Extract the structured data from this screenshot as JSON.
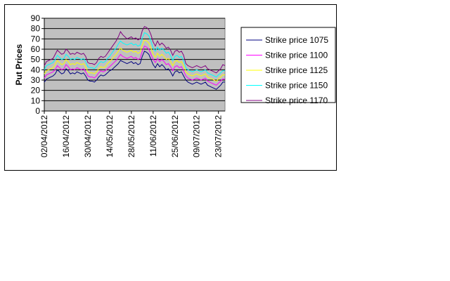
{
  "chart_data": {
    "type": "line",
    "title": "",
    "xlabel": "",
    "ylabel": "Put Prices",
    "ylim": [
      0,
      90
    ],
    "yticks": [
      0,
      10,
      20,
      30,
      40,
      50,
      60,
      70,
      80,
      90
    ],
    "x_tick_labels": [
      "02/04/2012",
      "16/04/2012",
      "30/04/2012",
      "14/05/2012",
      "28/05/2012",
      "11/06/2012",
      "25/06/2012",
      "09/07/2012",
      "23/07/2012"
    ],
    "x": [
      "02/04/2012",
      "03/04/2012",
      "04/04/2012",
      "05/04/2012",
      "06/04/2012",
      "09/04/2012",
      "10/04/2012",
      "11/04/2012",
      "12/04/2012",
      "13/04/2012",
      "16/04/2012",
      "17/04/2012",
      "18/04/2012",
      "19/04/2012",
      "20/04/2012",
      "23/04/2012",
      "24/04/2012",
      "25/04/2012",
      "26/04/2012",
      "27/04/2012",
      "30/04/2012",
      "01/05/2012",
      "02/05/2012",
      "03/05/2012",
      "04/05/2012",
      "07/05/2012",
      "08/05/2012",
      "09/05/2012",
      "10/05/2012",
      "11/05/2012",
      "14/05/2012",
      "15/05/2012",
      "16/05/2012",
      "17/05/2012",
      "18/05/2012",
      "21/05/2012",
      "22/05/2012",
      "23/05/2012",
      "24/05/2012",
      "25/05/2012",
      "28/05/2012",
      "29/05/2012",
      "30/05/2012",
      "31/05/2012",
      "01/06/2012",
      "04/06/2012",
      "05/06/2012",
      "06/06/2012",
      "07/06/2012",
      "08/06/2012",
      "11/06/2012",
      "12/06/2012",
      "13/06/2012",
      "14/06/2012",
      "15/06/2012",
      "18/06/2012",
      "19/06/2012",
      "20/06/2012",
      "21/06/2012",
      "22/06/2012",
      "25/06/2012",
      "26/06/2012",
      "27/06/2012",
      "28/06/2012",
      "29/06/2012",
      "02/07/2012",
      "03/07/2012",
      "04/07/2012",
      "05/07/2012",
      "06/07/2012",
      "09/07/2012",
      "10/07/2012",
      "11/07/2012",
      "12/07/2012",
      "13/07/2012",
      "16/07/2012",
      "17/07/2012",
      "18/07/2012",
      "19/07/2012",
      "20/07/2012",
      "23/07/2012",
      "24/07/2012",
      "25/07/2012",
      "26/07/2012"
    ],
    "grid": true,
    "plot_background": "#c0c0c0",
    "legend_position": "right",
    "series": [
      {
        "name": "Strike price 1075",
        "color": "#000080",
        "values": [
          28,
          31,
          32,
          33,
          34,
          36,
          40,
          38,
          36,
          37,
          41,
          39,
          36,
          37,
          36,
          38,
          37,
          36,
          37,
          34,
          30,
          29,
          29,
          28,
          30,
          33,
          35,
          34,
          35,
          37,
          39,
          40,
          42,
          44,
          46,
          49,
          48,
          47,
          46,
          47,
          48,
          46,
          47,
          45,
          46,
          53,
          58,
          57,
          55,
          50,
          45,
          42,
          46,
          43,
          45,
          43,
          40,
          41,
          38,
          34,
          38,
          39,
          37,
          38,
          34,
          30,
          28,
          27,
          26,
          27,
          28,
          27,
          26,
          27,
          28,
          25,
          24,
          23,
          22,
          21,
          23,
          25,
          28,
          28
        ]
      },
      {
        "name": "Strike price 1100",
        "color": "#ff00ff",
        "values": [
          32,
          35,
          36,
          37,
          38,
          40,
          44,
          42,
          40,
          41,
          45,
          43,
          40,
          41,
          40,
          42,
          41,
          40,
          41,
          38,
          34,
          33,
          33,
          32,
          34,
          37,
          39,
          38,
          39,
          41,
          43,
          45,
          47,
          49,
          52,
          55,
          53,
          52,
          51,
          52,
          53,
          51,
          52,
          50,
          51,
          58,
          63,
          62,
          60,
          55,
          50,
          47,
          51,
          48,
          50,
          48,
          45,
          46,
          43,
          39,
          43,
          44,
          42,
          43,
          39,
          34,
          32,
          31,
          30,
          31,
          32,
          31,
          30,
          31,
          32,
          29,
          28,
          27,
          26,
          25,
          27,
          29,
          31,
          31
        ]
      },
      {
        "name": "Strike price 1125",
        "color": "#ffff00",
        "values": [
          36,
          39,
          40,
          41,
          42,
          45,
          49,
          47,
          45,
          46,
          50,
          48,
          45,
          46,
          45,
          47,
          46,
          45,
          46,
          43,
          38,
          37,
          37,
          36,
          38,
          41,
          43,
          42,
          43,
          46,
          48,
          50,
          53,
          55,
          58,
          61,
          59,
          58,
          57,
          58,
          59,
          57,
          58,
          56,
          57,
          64,
          69,
          68,
          66,
          61,
          55,
          52,
          56,
          53,
          55,
          53,
          50,
          51,
          48,
          44,
          48,
          49,
          47,
          48,
          44,
          38,
          36,
          35,
          34,
          35,
          36,
          35,
          34,
          35,
          36,
          33,
          32,
          31,
          30,
          29,
          31,
          33,
          35,
          35
        ]
      },
      {
        "name": "Strike price 1150",
        "color": "#00ffff",
        "values": [
          40,
          44,
          45,
          46,
          47,
          50,
          54,
          52,
          50,
          51,
          55,
          53,
          50,
          51,
          50,
          52,
          51,
          50,
          51,
          48,
          43,
          42,
          42,
          41,
          43,
          46,
          48,
          47,
          48,
          51,
          53,
          56,
          59,
          61,
          65,
          68,
          66,
          65,
          64,
          65,
          66,
          64,
          65,
          63,
          64,
          71,
          76,
          75,
          73,
          68,
          61,
          58,
          62,
          59,
          61,
          59,
          56,
          57,
          54,
          49,
          53,
          54,
          52,
          53,
          49,
          42,
          40,
          39,
          38,
          39,
          40,
          39,
          38,
          39,
          40,
          37,
          36,
          35,
          34,
          33,
          35,
          37,
          39,
          39
        ]
      },
      {
        "name": "Strike price 1170",
        "color": "#800080",
        "values": [
          44,
          48,
          49,
          50,
          51,
          55,
          59,
          57,
          55,
          56,
          60,
          58,
          55,
          56,
          55,
          57,
          56,
          55,
          56,
          53,
          47,
          46,
          46,
          45,
          47,
          51,
          53,
          52,
          53,
          56,
          59,
          62,
          65,
          68,
          72,
          77,
          74,
          72,
          70,
          71,
          72,
          70,
          71,
          69,
          70,
          78,
          82,
          81,
          79,
          74,
          67,
          63,
          68,
          64,
          66,
          64,
          61,
          62,
          59,
          54,
          58,
          59,
          57,
          58,
          54,
          46,
          44,
          43,
          42,
          43,
          44,
          43,
          42,
          43,
          44,
          41,
          40,
          39,
          38,
          37,
          39,
          41,
          45,
          44
        ]
      }
    ]
  }
}
